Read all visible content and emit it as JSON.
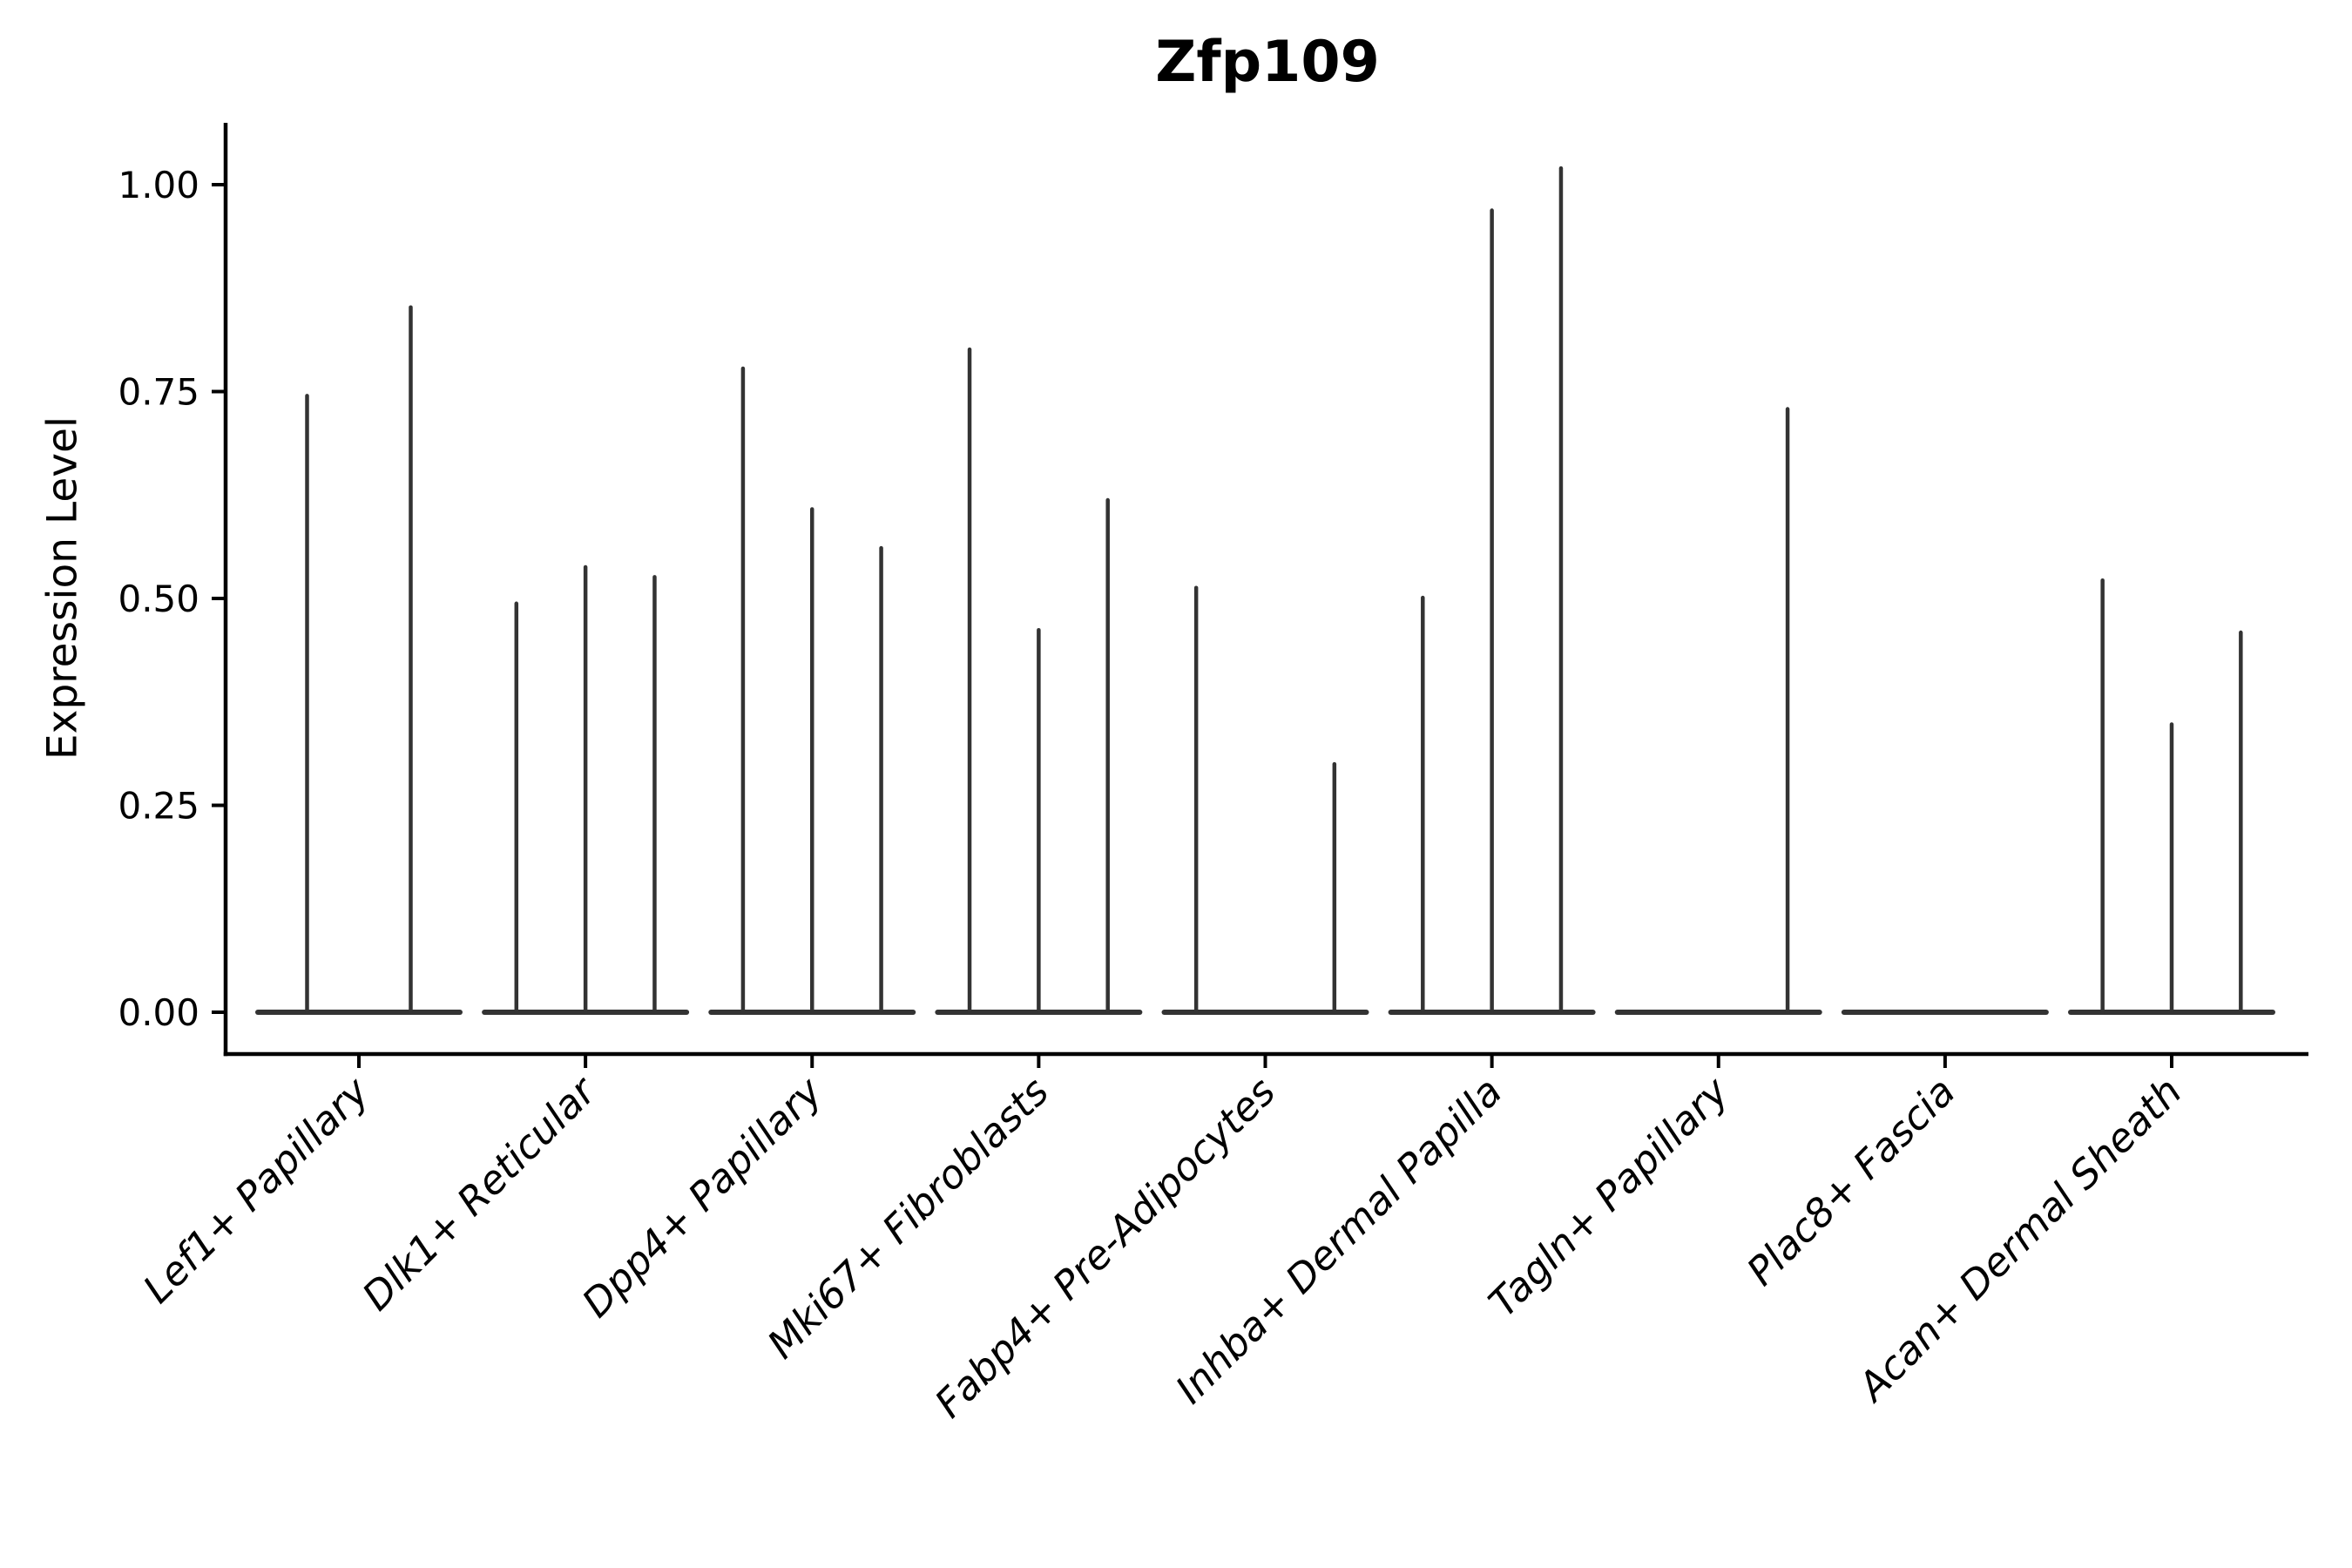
{
  "chart_data": {
    "type": "violin",
    "title": "Zfp109",
    "ylabel": "Expression Level",
    "xlabel": "",
    "grid": false,
    "legend": "none",
    "ylim": [
      0,
      1.075
    ],
    "yticks": [
      {
        "label": "0.00",
        "value": 0.0
      },
      {
        "label": "0.25",
        "value": 0.25
      },
      {
        "label": "0.50",
        "value": 0.5
      },
      {
        "label": "0.75",
        "value": 0.75
      },
      {
        "label": "1.00",
        "value": 1.0
      }
    ],
    "categories": [
      "Lef1+ Papillary",
      "Dlk1+ Reticular",
      "Dpp4+ Papillary",
      "Mki67+ Fibroblasts",
      "Fabp4+ Pre-Adipocytes",
      "Inhba+ Dermal Papilla",
      "Tagln+ Papillary",
      "Plac8+ Fascia",
      "Acan+ Dermal Sheath"
    ],
    "groups": [
      {
        "label": "Lef1+ Papillary",
        "violin_peaks": [
          0.747,
          0.854
        ]
      },
      {
        "label": "Dlk1+ Reticular",
        "violin_peaks": [
          0.496,
          0.54,
          0.528
        ]
      },
      {
        "label": "Dpp4+ Papillary",
        "violin_peaks": [
          0.78,
          0.61,
          0.563
        ]
      },
      {
        "label": "Mki67+ Fibroblasts",
        "violin_peaks": [
          0.803,
          0.464,
          0.621
        ]
      },
      {
        "label": "Fabp4+ Pre-Adipocytes",
        "violin_peaks": [
          0.515,
          0.0,
          0.302
        ]
      },
      {
        "label": "Inhba+ Dermal Papilla",
        "violin_peaks": [
          0.503,
          0.971,
          1.022
        ]
      },
      {
        "label": "Tagln+ Papillary",
        "violin_peaks": [
          0.0,
          0.0,
          0.731
        ]
      },
      {
        "label": "Plac8+ Fascia",
        "violin_peaks": [
          0.0,
          0.0,
          0.0
        ]
      },
      {
        "label": "Acan+ Dermal Sheath",
        "violin_peaks": [
          0.524,
          0.35,
          0.461
        ]
      }
    ],
    "colors": {
      "violin": "#333333",
      "axis": "#000000",
      "text": "#000000",
      "background": "#ffffff"
    }
  }
}
